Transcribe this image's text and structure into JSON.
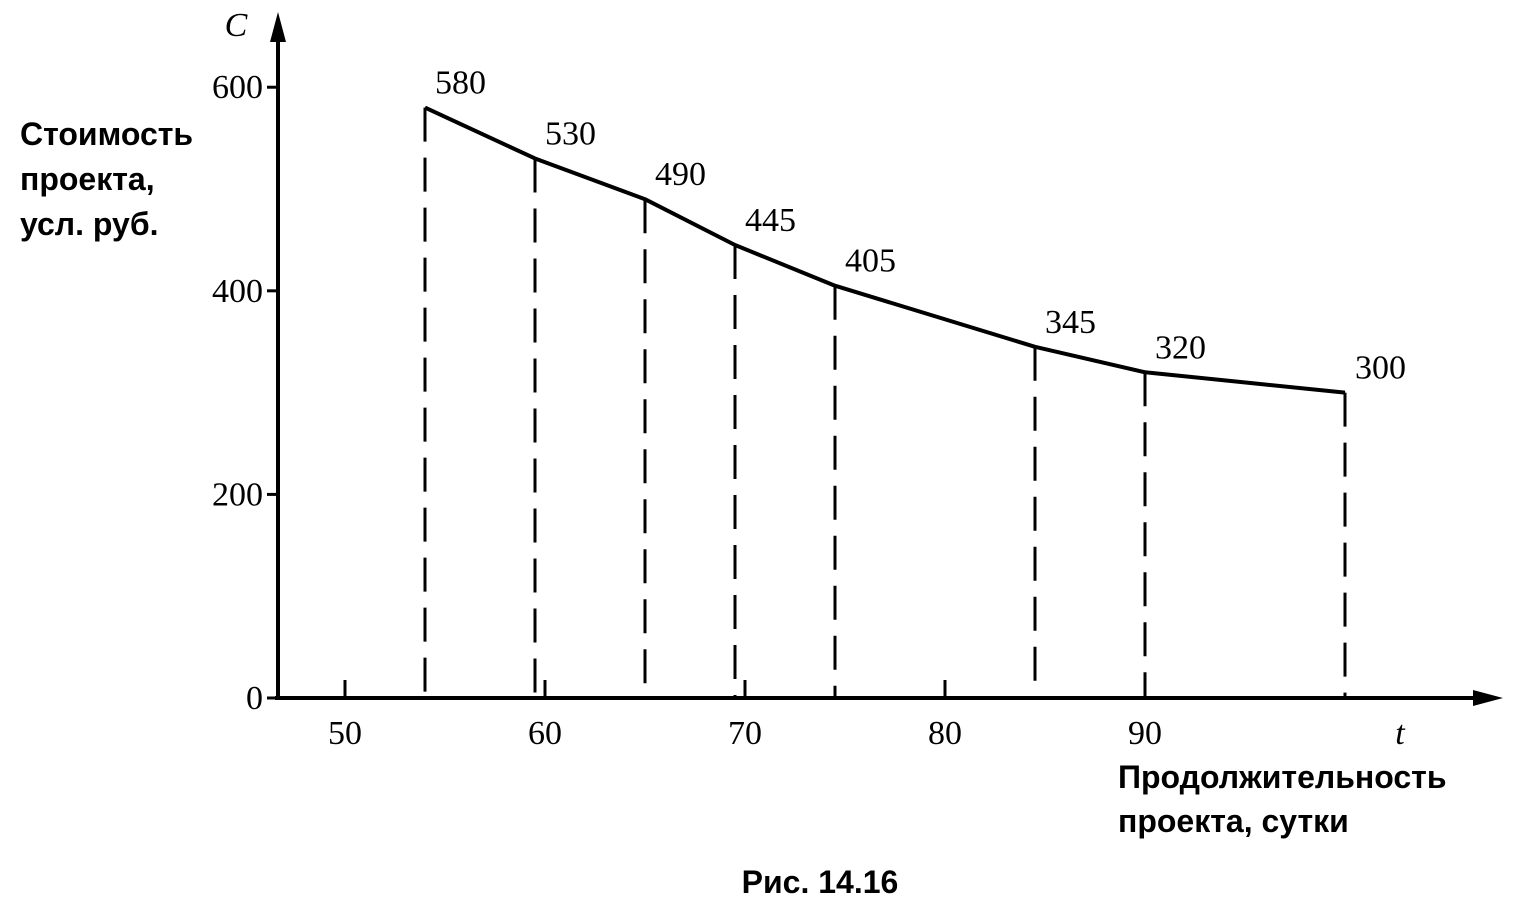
{
  "chart_data": {
    "type": "line",
    "x_axis_symbol": "t",
    "y_axis_symbol": "C",
    "xlabel": [
      "Продолжительность",
      "проекта, сутки"
    ],
    "ylabel": [
      "Стоимость",
      "проекта,",
      "усл. руб."
    ],
    "caption": "Рис. 14.16",
    "x": [
      54,
      59.5,
      65,
      69.5,
      74.5,
      84.5,
      90,
      100
    ],
    "values": [
      580,
      530,
      490,
      445,
      405,
      345,
      320,
      300
    ],
    "color": "#000000",
    "xlim": [
      46.5,
      107.5
    ],
    "xticks": [
      50,
      60,
      70,
      80,
      90
    ],
    "ylim": [
      0,
      668
    ],
    "yticks": [
      0,
      200,
      400,
      600
    ]
  }
}
